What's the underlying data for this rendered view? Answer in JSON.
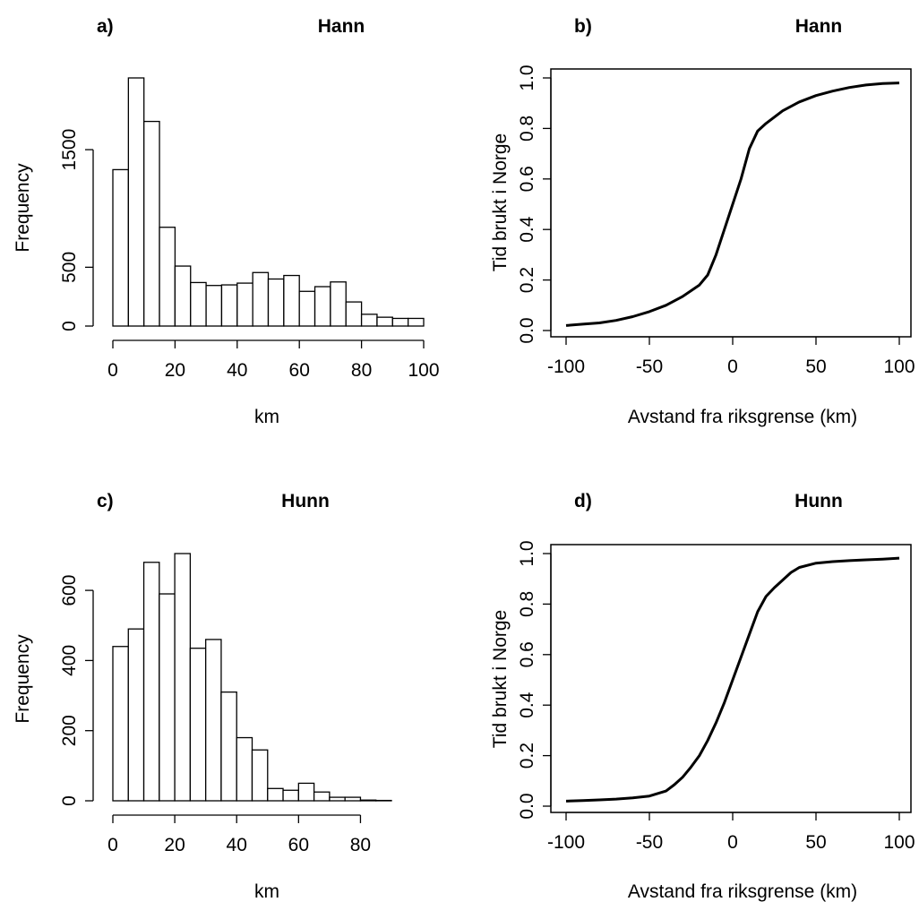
{
  "chart_data": [
    {
      "type": "bar",
      "tag": "a)",
      "title": "Hann",
      "xlabel": "km",
      "ylabel": "Frequency",
      "bin_edges": [
        0,
        5,
        10,
        15,
        20,
        25,
        30,
        35,
        40,
        45,
        50,
        55,
        60,
        65,
        70,
        75,
        80,
        85,
        90,
        95,
        100
      ],
      "values": [
        1330,
        2110,
        1740,
        840,
        510,
        370,
        345,
        350,
        365,
        455,
        400,
        430,
        295,
        335,
        375,
        205,
        100,
        75,
        65,
        65
      ],
      "xlim": [
        0,
        100
      ],
      "ylim": [
        0,
        2110
      ],
      "xticks": [
        0,
        20,
        40,
        60,
        80,
        100
      ],
      "xtick_labels": [
        "0",
        "20",
        "40",
        "60",
        "80",
        "100"
      ],
      "yticks": [
        0,
        500,
        1500
      ],
      "ytick_labels": [
        "0",
        "500",
        "1500"
      ],
      "grid": false
    },
    {
      "type": "line",
      "tag": "b)",
      "title": "Hann",
      "xlabel": "Avstand fra riksgrense (km)",
      "ylabel": "Tid brukt i Norge",
      "x": [
        -100,
        -90,
        -80,
        -70,
        -60,
        -50,
        -40,
        -30,
        -20,
        -15,
        -10,
        -5,
        0,
        5,
        10,
        15,
        20,
        30,
        40,
        50,
        60,
        70,
        80,
        90,
        100
      ],
      "y": [
        0.02,
        0.025,
        0.03,
        0.04,
        0.055,
        0.075,
        0.1,
        0.135,
        0.18,
        0.22,
        0.3,
        0.4,
        0.5,
        0.6,
        0.72,
        0.79,
        0.82,
        0.87,
        0.905,
        0.93,
        0.948,
        0.962,
        0.972,
        0.978,
        0.98
      ],
      "xlim": [
        -100,
        100
      ],
      "ylim": [
        0,
        1
      ],
      "xticks": [
        -100,
        -50,
        0,
        50,
        100
      ],
      "xtick_labels": [
        "-100",
        "-50",
        "0",
        "50",
        "100"
      ],
      "yticks": [
        0,
        0.2,
        0.4,
        0.6,
        0.8,
        1
      ],
      "ytick_labels": [
        "0.0",
        "0.2",
        "0.4",
        "0.6",
        "0.8",
        "1.0"
      ],
      "grid": false
    },
    {
      "type": "bar",
      "tag": "c)",
      "title": "Hunn",
      "xlabel": "km",
      "ylabel": "Frequency",
      "bin_edges": [
        0,
        5,
        10,
        15,
        20,
        25,
        30,
        35,
        40,
        45,
        50,
        55,
        60,
        65,
        70,
        75,
        80,
        85,
        90
      ],
      "values": [
        440,
        490,
        680,
        590,
        705,
        435,
        460,
        310,
        180,
        145,
        35,
        30,
        50,
        25,
        10,
        10,
        2,
        1
      ],
      "xlim": [
        0,
        90
      ],
      "ylim": [
        0,
        705
      ],
      "xticks": [
        0,
        20,
        40,
        60,
        80
      ],
      "xtick_labels": [
        "0",
        "20",
        "40",
        "60",
        "80"
      ],
      "yticks": [
        0,
        200,
        400,
        600
      ],
      "ytick_labels": [
        "0",
        "200",
        "400",
        "600"
      ],
      "grid": false
    },
    {
      "type": "line",
      "tag": "d)",
      "title": "Hunn",
      "xlabel": "Avstand fra riksgrense (km)",
      "ylabel": "Tid brukt i Norge",
      "x": [
        -100,
        -90,
        -80,
        -70,
        -60,
        -50,
        -40,
        -35,
        -30,
        -25,
        -20,
        -15,
        -10,
        -5,
        0,
        5,
        10,
        15,
        20,
        25,
        30,
        35,
        40,
        50,
        60,
        70,
        80,
        90,
        100
      ],
      "y": [
        0.02,
        0.022,
        0.025,
        0.028,
        0.033,
        0.04,
        0.06,
        0.085,
        0.115,
        0.155,
        0.2,
        0.26,
        0.33,
        0.41,
        0.5,
        0.59,
        0.68,
        0.77,
        0.83,
        0.865,
        0.895,
        0.925,
        0.945,
        0.962,
        0.968,
        0.972,
        0.975,
        0.978,
        0.982
      ],
      "xlim": [
        -100,
        100
      ],
      "ylim": [
        0,
        1
      ],
      "xticks": [
        -100,
        -50,
        0,
        50,
        100
      ],
      "xtick_labels": [
        "-100",
        "-50",
        "0",
        "50",
        "100"
      ],
      "yticks": [
        0,
        0.2,
        0.4,
        0.6,
        0.8,
        1
      ],
      "ytick_labels": [
        "0.0",
        "0.2",
        "0.4",
        "0.6",
        "0.8",
        "1.0"
      ],
      "grid": false
    }
  ]
}
